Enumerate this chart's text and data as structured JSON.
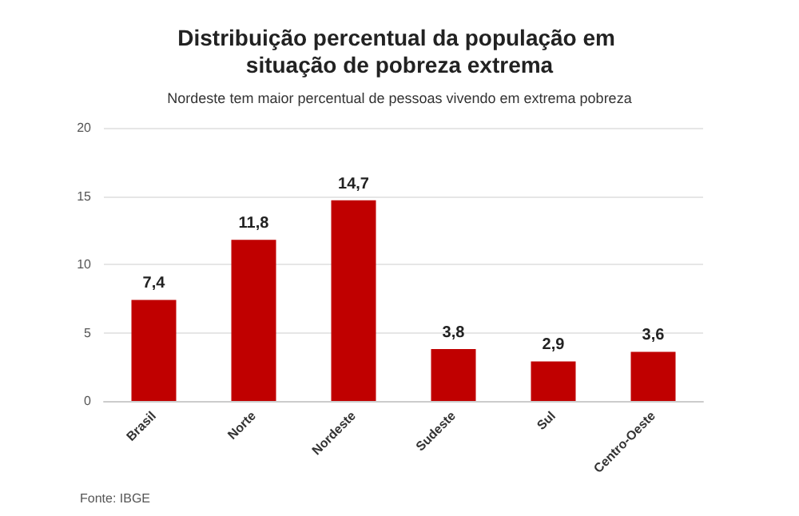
{
  "chart_data": {
    "type": "bar",
    "title": "Distribuição percentual da população em situação de pobreza extrema",
    "subtitle": "Nordeste tem maior percentual de pessoas vivendo em extrema pobreza",
    "categories": [
      "Brasil",
      "Norte",
      "Nordeste",
      "Sudeste",
      "Sul",
      "Centro-Oeste"
    ],
    "values": [
      7.4,
      11.8,
      14.7,
      3.8,
      2.9,
      3.6
    ],
    "value_labels": [
      "7,4",
      "11,8",
      "14,7",
      "3,8",
      "2,9",
      "3,6"
    ],
    "color": "#c00000",
    "ylim": [
      0,
      20
    ],
    "yticks": [
      0,
      5,
      10,
      15,
      20
    ],
    "grid": "y",
    "annotations": [
      "Fonte: IBGE"
    ]
  }
}
